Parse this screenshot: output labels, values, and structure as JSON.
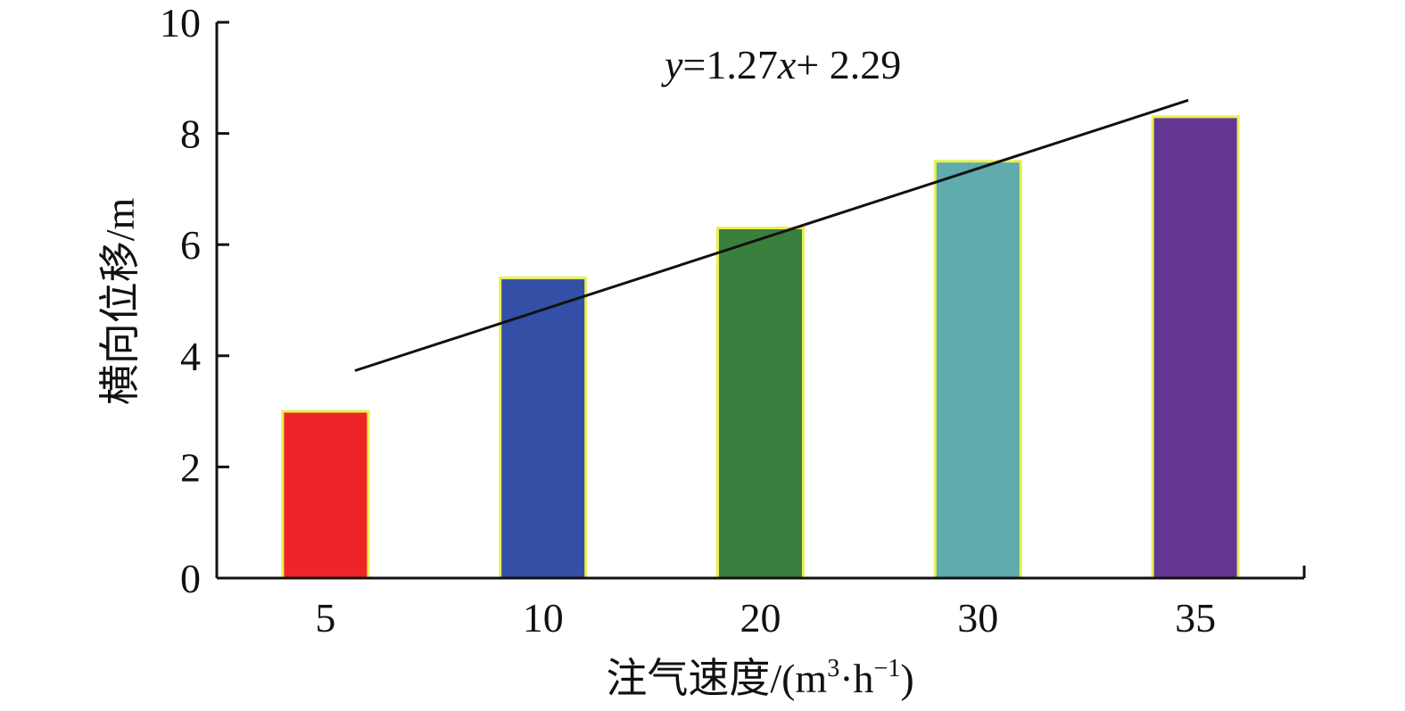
{
  "chart_data": {
    "type": "bar",
    "categories": [
      "5",
      "10",
      "20",
      "30",
      "35"
    ],
    "values": [
      3.0,
      5.4,
      6.3,
      7.5,
      8.3
    ],
    "bar_colors": [
      "#ee2428",
      "#3350a6",
      "#3a7f3d",
      "#5fabad",
      "#643795"
    ],
    "bar_edge_color": "#e8ef55",
    "xlabel_main": "注气速度/(m",
    "xlabel_sup1": "3",
    "xlabel_mid": "·h",
    "xlabel_sup2": "−1",
    "xlabel_end": ")",
    "ylabel": "横向位移/m",
    "ylim": [
      0,
      10
    ],
    "yticks": [
      "0",
      "2",
      "4",
      "6",
      "8",
      "10"
    ],
    "grid": false,
    "trendline": {
      "slope": 1.27,
      "intercept": 2.29,
      "eq_y": "y",
      "eq_a": "=1.27",
      "eq_x": "x",
      "eq_b": "+ 2.29"
    }
  }
}
